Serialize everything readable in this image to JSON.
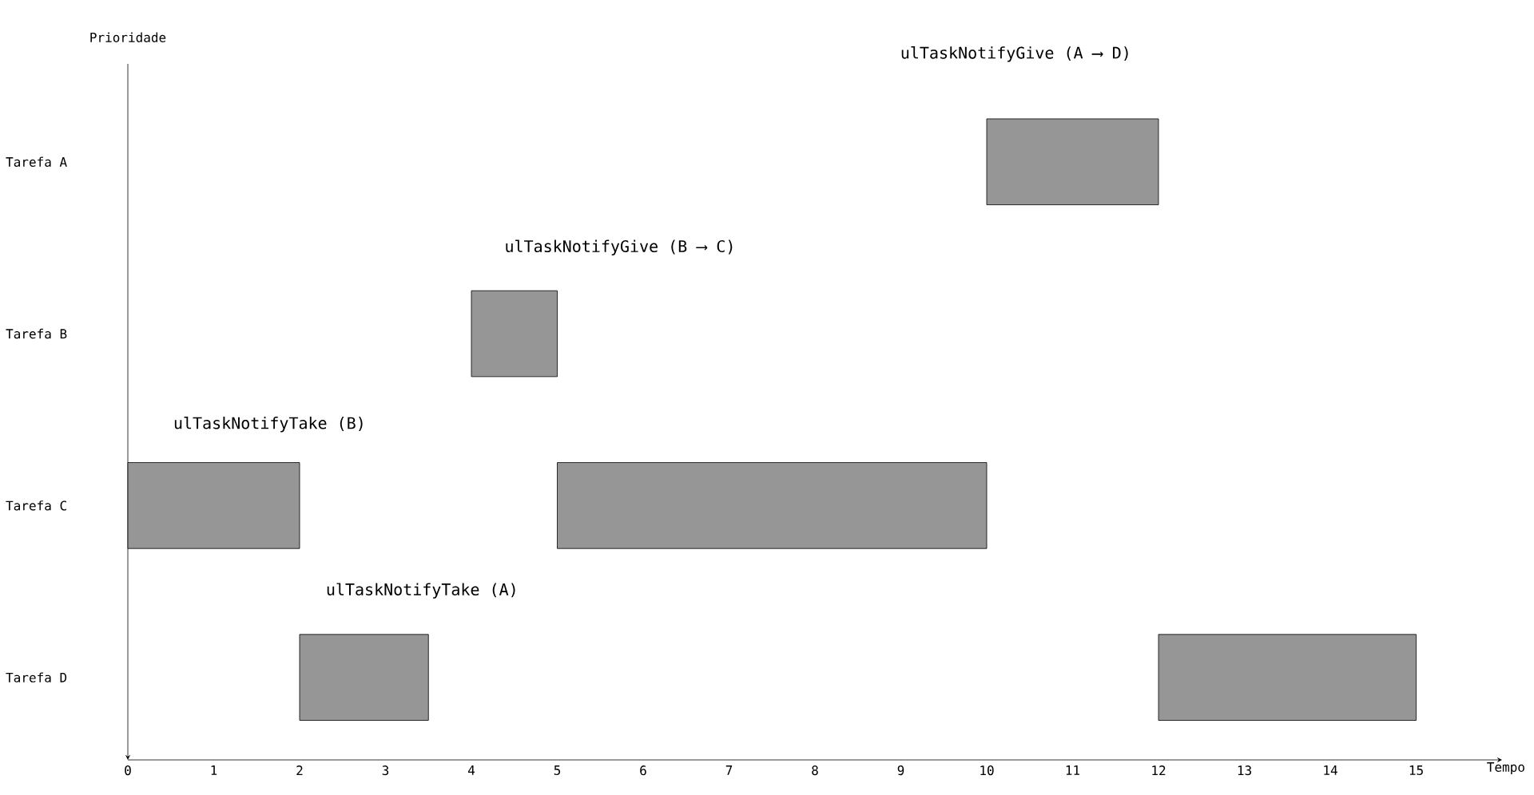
{
  "chart_data": {
    "type": "bar",
    "orientation": "horizontal",
    "categories": [
      "Tarefa A",
      "Tarefa B",
      "Tarefa C",
      "Tarefa D"
    ],
    "series": [
      {
        "color": "#969696",
        "base": [
          10,
          4,
          0,
          2
        ],
        "values": [
          2,
          1,
          2,
          1.5
        ]
      },
      {
        "color": "#969696",
        "base": [
          null,
          null,
          5,
          12
        ],
        "values": [
          null,
          null,
          5,
          3
        ]
      }
    ],
    "xlim": [
      0,
      16
    ],
    "xticks": [
      0,
      1,
      2,
      3,
      4,
      5,
      6,
      7,
      8,
      9,
      10,
      11,
      12,
      13,
      14,
      15
    ],
    "xlabel": "Tempo",
    "ylabel": "Prioridade",
    "grid": false,
    "annotations": [
      "ulTaskNotifyGive (A ⟶ D)",
      "ulTaskNotifyGive (B ⟶ C)",
      "ulTaskNotifyTake (B)",
      "ulTaskNotifyTake (A)"
    ]
  }
}
